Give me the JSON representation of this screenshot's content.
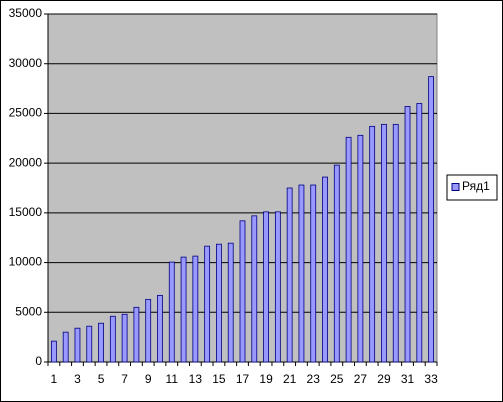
{
  "chart_data": {
    "type": "bar",
    "categories": [
      "1",
      null,
      "3",
      null,
      "5",
      null,
      "7",
      null,
      "9",
      null,
      "11",
      null,
      "13",
      null,
      "15",
      null,
      "17",
      null,
      "19",
      null,
      "21",
      null,
      "23",
      null,
      "25",
      null,
      "27",
      null,
      "29",
      null,
      "31",
      null,
      "33"
    ],
    "series": [
      {
        "name": "Ряд1",
        "color": "#9999ff",
        "values": [
          2100,
          3000,
          3400,
          3600,
          3900,
          4600,
          4800,
          5500,
          6300,
          6700,
          10050,
          10550,
          10650,
          11650,
          11850,
          11950,
          14200,
          14700,
          15100,
          15100,
          17500,
          17800,
          17800,
          18600,
          19800,
          22600,
          22800,
          23700,
          23900,
          23900,
          25700,
          26000,
          28700
        ]
      }
    ],
    "ylim": [
      0,
      35000
    ],
    "yticks": [
      0,
      5000,
      10000,
      15000,
      20000,
      25000,
      30000,
      35000
    ],
    "grid": true,
    "plot_background": "#c0c0c0",
    "legend": "right"
  }
}
